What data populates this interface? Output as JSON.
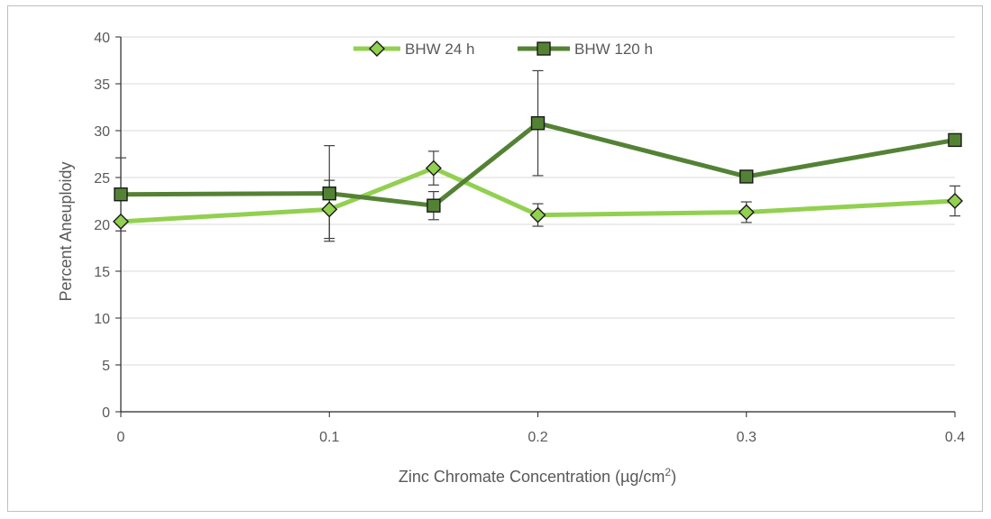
{
  "chart_data": {
    "type": "line",
    "x": [
      0,
      0.1,
      0.15,
      0.2,
      0.3,
      0.4
    ],
    "x_tick_labels": [
      "0",
      "0.1",
      "0.2",
      "0.3",
      "0.4"
    ],
    "x_ticks": [
      0,
      0.1,
      0.2,
      0.3,
      0.4
    ],
    "y_tick_labels": [
      "0",
      "5",
      "10",
      "15",
      "20",
      "25",
      "30",
      "35",
      "40"
    ],
    "y_ticks": [
      0,
      5,
      10,
      15,
      20,
      25,
      30,
      35,
      40
    ],
    "xlim": [
      0,
      0.4
    ],
    "ylim": [
      0,
      40
    ],
    "xlabel_main": "Zinc Chromate Concentration (µg/cm",
    "xlabel_sup": "2",
    "xlabel_end": ")",
    "ylabel": "Percent Aneuploidy",
    "grid": "horizontal",
    "legend_position": "top-center",
    "series": [
      {
        "name": "BHW 24 h",
        "marker": "diamond",
        "color": "#92d050",
        "values": [
          20.3,
          21.6,
          26.0,
          21.0,
          21.3,
          22.5
        ],
        "error": [
          null,
          3.1,
          1.8,
          1.2,
          1.1,
          1.6
        ]
      },
      {
        "name": "BHW 120 h",
        "marker": "square",
        "color": "#548235",
        "values": [
          23.2,
          23.3,
          22.0,
          30.8,
          25.1,
          29.0
        ],
        "error": [
          3.9,
          5.1,
          1.5,
          5.6,
          null,
          null
        ]
      }
    ]
  }
}
